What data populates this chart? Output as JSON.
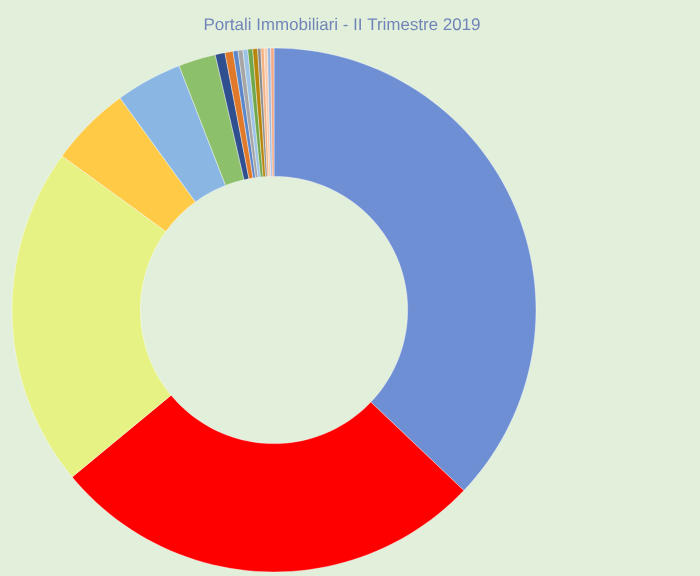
{
  "chart_data": {
    "type": "donut",
    "title": "Portali Immobiliari - II Trimestre 2019",
    "categories": [
      null,
      null,
      null,
      null,
      null,
      null,
      null,
      null,
      null,
      null,
      null,
      null,
      null,
      null,
      null,
      null,
      null,
      null
    ],
    "values": [
      37.1,
      26.9,
      21.0,
      5.0,
      4.1,
      2.3,
      0.6,
      0.5,
      0.3,
      0.3,
      0.3,
      0.3,
      0.3,
      0.2,
      0.2,
      0.2,
      0.2,
      0.2
    ],
    "colors": [
      "#6f8fd4",
      "#ff0000",
      "#e6f283",
      "#ffcb47",
      "#8ab6e3",
      "#8dc06b",
      "#2f4f8f",
      "#e07a2a",
      "#5b86c9",
      "#a6a6a6",
      "#9dc3e6",
      "#6fa84c",
      "#b8860b",
      "#8c8c8c",
      "#f4b183",
      "#f8cbad",
      "#9fb9e0",
      "#f2a986"
    ]
  }
}
